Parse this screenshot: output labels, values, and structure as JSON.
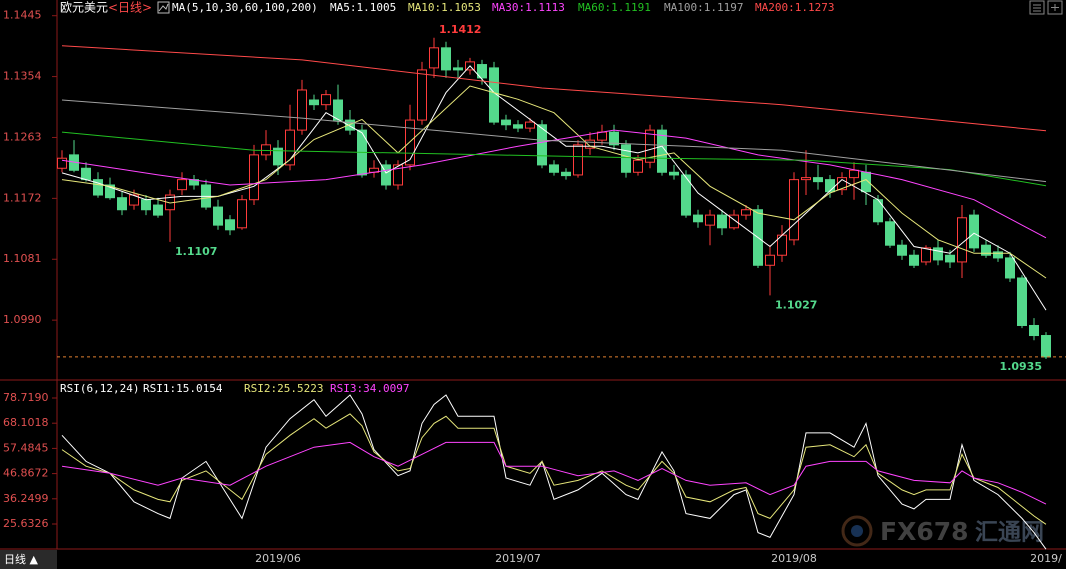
{
  "chart_data": [
    {
      "type": "candlestick",
      "title": "欧元美元",
      "period": "<日线>",
      "indicator": "MA(5,10,30,60,100,200)",
      "categories": [
        null,
        null,
        null,
        null,
        null,
        null,
        null,
        null,
        null,
        null,
        null,
        null,
        null,
        null,
        null,
        null,
        null,
        null,
        "2019/06",
        null,
        null,
        null,
        null,
        null,
        null,
        null,
        null,
        null,
        null,
        null,
        null,
        null,
        null,
        null,
        null,
        null,
        null,
        null,
        "2019/07",
        null,
        null,
        null,
        null,
        null,
        null,
        null,
        null,
        null,
        null,
        null,
        null,
        null,
        null,
        null,
        null,
        null,
        null,
        null,
        null,
        null,
        null,
        "2019/08",
        null,
        null,
        null,
        null,
        null,
        null,
        null,
        null,
        null,
        null,
        null,
        null,
        null,
        null,
        null,
        null,
        null,
        null,
        null,
        null,
        "2019/"
      ],
      "open": [
        1.1217,
        1.1237,
        1.1217,
        1.12,
        1.1192,
        1.1173,
        1.1162,
        1.117,
        1.1162,
        1.1155,
        1.1185,
        1.12,
        1.1192,
        1.1159,
        1.114,
        1.1128,
        1.117,
        1.1237,
        1.1247,
        1.1222,
        1.1274,
        1.1319,
        1.1312,
        1.1319,
        1.1289,
        1.1274,
        1.1211,
        1.1222,
        1.1192,
        1.1222,
        1.1289,
        1.1367,
        1.1397,
        1.1367,
        1.1364,
        1.1372,
        1.1367,
        1.1289,
        1.1282,
        1.1277,
        1.1282,
        1.1222,
        1.1211,
        1.1207,
        1.1247,
        1.1259,
        1.1271,
        1.1252,
        1.1211,
        1.1226,
        1.1274,
        1.1211,
        1.1207,
        1.1147,
        1.1132,
        1.1147,
        1.1128,
        1.1147,
        1.1155,
        1.1072,
        1.1087,
        1.111,
        1.12,
        1.1203,
        1.12,
        1.1185,
        1.1203,
        1.1211,
        1.117,
        1.1137,
        1.1102,
        1.1087,
        1.1077,
        1.1098,
        1.1087,
        1.1077,
        1.1147,
        1.1102,
        1.1092,
        1.1083,
        1.1053,
        1.0982,
        1.0967
      ],
      "high": [
        1.1244,
        1.1259,
        1.1226,
        1.1211,
        1.1203,
        1.1182,
        1.1185,
        1.1177,
        1.1173,
        1.1185,
        1.1211,
        1.1207,
        1.12,
        1.117,
        1.1147,
        1.1177,
        1.1252,
        1.1274,
        1.1259,
        1.1312,
        1.1349,
        1.1327,
        1.1334,
        1.1342,
        1.1304,
        1.1282,
        1.1229,
        1.1229,
        1.1229,
        1.1312,
        1.1376,
        1.1412,
        1.1406,
        1.1379,
        1.1382,
        1.1379,
        1.1376,
        1.1297,
        1.1289,
        1.1292,
        1.1289,
        1.1229,
        1.1217,
        1.1259,
        1.1271,
        1.1282,
        1.1282,
        1.1259,
        1.1237,
        1.1282,
        1.1282,
        1.1222,
        1.1214,
        1.1155,
        1.1155,
        1.1155,
        1.1155,
        1.1162,
        1.1162,
        1.1102,
        1.1132,
        1.1211,
        1.1244,
        1.1222,
        1.1207,
        1.1211,
        1.1226,
        1.1222,
        1.1177,
        1.1143,
        1.111,
        1.1095,
        1.1102,
        1.111,
        1.1095,
        1.1162,
        1.1155,
        1.111,
        1.1102,
        1.1092,
        1.1057,
        1.0993,
        1.0972
      ],
      "low": [
        1.1211,
        1.1211,
        1.1197,
        1.1173,
        1.117,
        1.1147,
        1.1155,
        1.1147,
        1.1143,
        1.1107,
        1.1177,
        1.1185,
        1.1155,
        1.1125,
        1.1117,
        1.1125,
        1.1162,
        1.1229,
        1.1207,
        1.1214,
        1.1267,
        1.1304,
        1.1304,
        1.1282,
        1.1267,
        1.1203,
        1.1203,
        1.1185,
        1.1185,
        1.1214,
        1.1282,
        1.1352,
        1.1352,
        1.1352,
        1.1357,
        1.1342,
        1.1282,
        1.1274,
        1.1271,
        1.1271,
        1.1217,
        1.1206,
        1.12,
        1.1203,
        1.1237,
        1.1252,
        1.1244,
        1.1203,
        1.1206,
        1.1217,
        1.1206,
        1.12,
        1.1143,
        1.1128,
        1.1102,
        1.1117,
        1.1125,
        1.114,
        1.1068,
        1.1027,
        1.1077,
        1.1102,
        1.1177,
        1.1185,
        1.1173,
        1.1177,
        1.117,
        1.1162,
        1.1132,
        1.1098,
        1.108,
        1.1068,
        1.1072,
        1.1072,
        1.1068,
        1.1053,
        1.1092,
        1.1083,
        1.1077,
        1.1047,
        1.0978,
        1.096,
        1.0932
      ],
      "close": [
        1.1232,
        1.1214,
        1.12,
        1.1177,
        1.1173,
        1.1155,
        1.1177,
        1.1155,
        1.1147,
        1.1177,
        1.12,
        1.1192,
        1.1159,
        1.1132,
        1.1125,
        1.117,
        1.1237,
        1.1252,
        1.1222,
        1.1274,
        1.1334,
        1.1312,
        1.1327,
        1.1289,
        1.1274,
        1.1207,
        1.1217,
        1.1192,
        1.1222,
        1.1289,
        1.1364,
        1.1397,
        1.1364,
        1.1364,
        1.1376,
        1.1352,
        1.1286,
        1.1282,
        1.1277,
        1.1286,
        1.1222,
        1.1211,
        1.1206,
        1.1252,
        1.1259,
        1.1271,
        1.1252,
        1.1211,
        1.1229,
        1.1274,
        1.1211,
        1.1207,
        1.1147,
        1.1137,
        1.1147,
        1.1128,
        1.1147,
        1.1155,
        1.1072,
        1.1087,
        1.1117,
        1.12,
        1.1203,
        1.1197,
        1.1182,
        1.1203,
        1.1214,
        1.1182,
        1.1137,
        1.1102,
        1.1087,
        1.1072,
        1.1098,
        1.108,
        1.1077,
        1.1143,
        1.1098,
        1.1087,
        1.1083,
        1.1053,
        1.0982,
        1.0967,
        1.0935
      ],
      "up_color": "#ff3c3c",
      "down_color": "#54d98c",
      "last_line_color": "#e08030",
      "ylim": [
        1.0908,
        1.1461
      ],
      "yticks": [
        1.1445,
        1.1354,
        1.1263,
        1.1172,
        1.1081,
        {
          "value": 1.099,
          "label": "1.0990"
        }
      ],
      "annotations": [
        {
          "index": 31,
          "value": 1.1412
        },
        {
          "index": 9,
          "value": 1.1107
        },
        {
          "index": 59,
          "value": 1.1027
        },
        {
          "index": 82,
          "value": 1.0935
        }
      ],
      "series": [
        {
          "name": "MA5:1.1005",
          "color": "#ffffff",
          "x": [
            0,
            3,
            7,
            10,
            13,
            16,
            19,
            22,
            25,
            27,
            29,
            32,
            34,
            36,
            39,
            42,
            45,
            48,
            50,
            53,
            56,
            59,
            62,
            65,
            68,
            71,
            74,
            76,
            79,
            82
          ],
          "values": [
            1.121,
            1.1195,
            1.117,
            1.1175,
            1.1175,
            1.119,
            1.123,
            1.13,
            1.127,
            1.121,
            1.123,
            1.133,
            1.137,
            1.133,
            1.129,
            1.125,
            1.125,
            1.124,
            1.125,
            1.118,
            1.114,
            1.11,
            1.115,
            1.12,
            1.117,
            1.11,
            1.109,
            1.112,
            1.109,
            1.1005
          ]
        },
        {
          "name": "MA10:1.1053",
          "color": "#e6e67a",
          "x": [
            0,
            4,
            9,
            13,
            17,
            21,
            25,
            28,
            31,
            34,
            38,
            41,
            44,
            48,
            51,
            54,
            58,
            61,
            64,
            67,
            70,
            73,
            76,
            79,
            82
          ],
          "values": [
            1.12,
            1.119,
            1.1165,
            1.1175,
            1.12,
            1.126,
            1.129,
            1.124,
            1.129,
            1.134,
            1.132,
            1.13,
            1.125,
            1.123,
            1.124,
            1.119,
            1.115,
            1.114,
            1.118,
            1.12,
            1.115,
            1.111,
            1.109,
            1.109,
            1.1053
          ]
        },
        {
          "name": "MA30:1.1113",
          "color": "#ff44ff",
          "x": [
            0,
            8,
            14,
            22,
            30,
            38,
            46,
            52,
            58,
            64,
            70,
            76,
            82
          ],
          "values": [
            1.1229,
            1.1207,
            1.1192,
            1.12,
            1.1222,
            1.125,
            1.1274,
            1.1262,
            1.1237,
            1.1222,
            1.12,
            1.117,
            1.1113
          ]
        },
        {
          "name": "MA60:1.1191",
          "color": "#22c022",
          "x": [
            0,
            16,
            36,
            50,
            62,
            74,
            82
          ],
          "values": [
            1.1271,
            1.1244,
            1.1237,
            1.1232,
            1.1229,
            1.1215,
            1.1191
          ]
        },
        {
          "name": "MA100:1.1197",
          "color": "#a0a0a0",
          "x": [
            0,
            20,
            40,
            60,
            82
          ],
          "values": [
            1.1319,
            1.1292,
            1.1259,
            1.1244,
            1.1197
          ]
        },
        {
          "name": "MA200:1.1273",
          "color": "#ff4a4a",
          "x": [
            0,
            20,
            40,
            60,
            82
          ],
          "values": [
            1.14,
            1.1379,
            1.1337,
            1.1312,
            1.1273
          ]
        }
      ]
    },
    {
      "type": "line",
      "title": "RSI(6,12,24)",
      "ylim": [
        15.52,
        85.04
      ],
      "yticks": [
        {
          "value": 78.719,
          "label": "78.7190"
        },
        68.1018,
        57.4845,
        46.8672,
        36.2499,
        25.6326
      ],
      "series": [
        {
          "name": "RSI1:15.0154",
          "color": "#ffffff",
          "x": [
            0,
            2,
            4,
            6,
            8,
            9,
            10,
            12,
            14,
            15,
            17,
            19,
            21,
            22,
            24,
            25,
            26,
            28,
            29,
            30,
            31,
            32,
            33,
            35,
            36,
            37,
            39,
            40,
            41,
            43,
            45,
            47,
            48,
            50,
            51,
            52,
            54,
            56,
            57,
            58,
            59,
            61,
            62,
            64,
            66,
            67,
            68,
            70,
            71,
            72,
            74,
            75,
            76,
            78,
            80,
            81,
            82
          ],
          "values": [
            63,
            52,
            47,
            35,
            30,
            28,
            45,
            52,
            36,
            28,
            58,
            70,
            78,
            71,
            80,
            72,
            57,
            46,
            48,
            68,
            76,
            80,
            71,
            71,
            71,
            45,
            42,
            52,
            36,
            40,
            47,
            38,
            36,
            56,
            48,
            30,
            28,
            38,
            40,
            22,
            20,
            38,
            64,
            64,
            58,
            68,
            46,
            34,
            32,
            36,
            36,
            59,
            44,
            38,
            28,
            22,
            15.0154
          ]
        },
        {
          "name": "RSI2:25.5223",
          "color": "#e6e67a",
          "x": [
            0,
            2,
            4,
            6,
            8,
            9,
            10,
            12,
            14,
            15,
            17,
            19,
            21,
            22,
            24,
            25,
            26,
            28,
            29,
            30,
            31,
            32,
            33,
            36,
            37,
            39,
            40,
            41,
            43,
            45,
            47,
            48,
            50,
            51,
            52,
            54,
            56,
            57,
            58,
            59,
            61,
            62,
            64,
            66,
            67,
            68,
            70,
            71,
            72,
            74,
            75,
            76,
            78,
            80,
            81,
            82
          ],
          "values": [
            57,
            50,
            47,
            40,
            36,
            35,
            44,
            48,
            40,
            36,
            55,
            63,
            70,
            66,
            72,
            67,
            56,
            48,
            49,
            62,
            68,
            71,
            66,
            66,
            50,
            47,
            52,
            42,
            44,
            48,
            42,
            40,
            52,
            47,
            37,
            35,
            40,
            41,
            30,
            28,
            40,
            58,
            59,
            54,
            59,
            47,
            40,
            38,
            40,
            40,
            55,
            45,
            41,
            33,
            29,
            25.5223
          ]
        },
        {
          "name": "RSI3:34.0097",
          "color": "#ff44ff",
          "x": [
            0,
            4,
            8,
            10,
            14,
            17,
            21,
            24,
            26,
            28,
            30,
            32,
            36,
            37,
            40,
            43,
            46,
            48,
            50,
            52,
            54,
            57,
            59,
            61,
            62,
            64,
            67,
            68,
            71,
            74,
            75,
            76,
            78,
            80,
            82
          ],
          "values": [
            50,
            47,
            42,
            45,
            42,
            50,
            58,
            60,
            54,
            50,
            55,
            60,
            60,
            50,
            50,
            46,
            48,
            44,
            49,
            44,
            42,
            43,
            38,
            42,
            50,
            52,
            52,
            48,
            44,
            43,
            48,
            45,
            43,
            39,
            34.0097
          ]
        }
      ]
    }
  ],
  "footer": "日线 ▲",
  "watermark": {
    "brand": "FX678",
    "name": "汇通网"
  }
}
